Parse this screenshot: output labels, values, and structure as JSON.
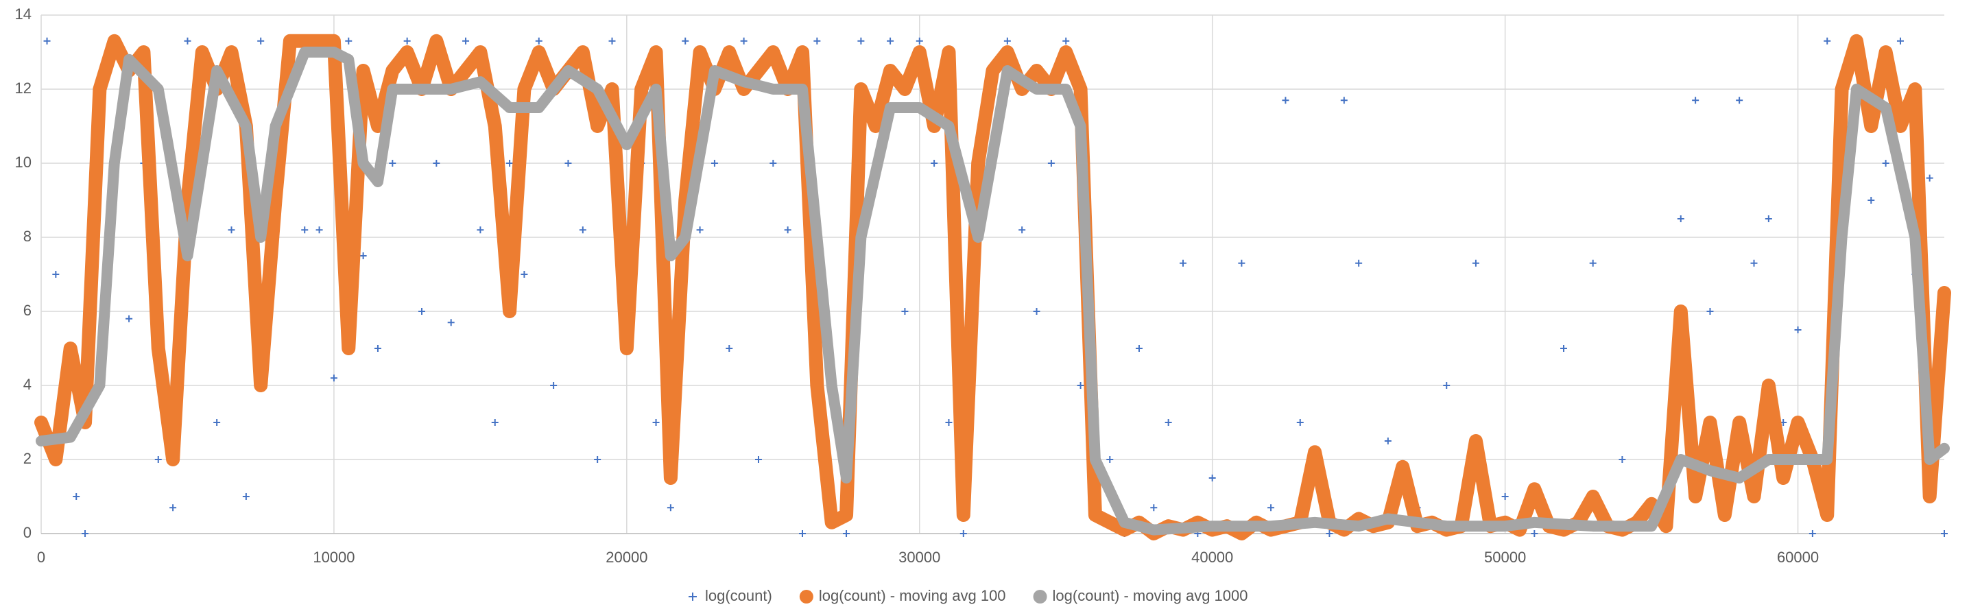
{
  "chart_data": {
    "type": "scatter",
    "xlim": [
      0,
      65000
    ],
    "ylim": [
      0,
      14
    ],
    "xticks": [
      0,
      10000,
      20000,
      30000,
      40000,
      50000,
      60000
    ],
    "yticks": [
      0,
      2,
      4,
      6,
      8,
      10,
      12,
      14
    ],
    "grid": true,
    "legend": "bottom",
    "series": [
      {
        "name": "log(count)",
        "type": "scatter",
        "color": "#4472c4",
        "x": [
          200,
          500,
          800,
          1200,
          1500,
          2000,
          2500,
          3000,
          3500,
          4000,
          4500,
          5000,
          5500,
          6000,
          6500,
          7000,
          7500,
          8000,
          8500,
          9000,
          9500,
          10000,
          10500,
          11000,
          11500,
          12000,
          12500,
          13000,
          13500,
          14000,
          14500,
          15000,
          15500,
          16000,
          16500,
          17000,
          17500,
          18000,
          18500,
          19000,
          19500,
          20000,
          20500,
          21000,
          21500,
          22000,
          22500,
          23000,
          23500,
          24000,
          24500,
          25000,
          25500,
          26000,
          26500,
          27000,
          27500,
          28000,
          28500,
          29000,
          29500,
          30000,
          30500,
          31000,
          31500,
          32000,
          32500,
          33000,
          33500,
          34000,
          34500,
          35000,
          35500,
          36000,
          36500,
          37000,
          37500,
          38000,
          38500,
          39000,
          39500,
          40000,
          41000,
          42000,
          42500,
          43000,
          44000,
          44500,
          45000,
          46000,
          47000,
          48000,
          49000,
          50000,
          51000,
          52000,
          53000,
          54000,
          55000,
          56000,
          56500,
          57000,
          57500,
          58000,
          58500,
          59000,
          59500,
          60000,
          60500,
          61000,
          61500,
          62000,
          62500,
          63000,
          63500,
          64000,
          64500,
          65000
        ],
        "values": [
          13.3,
          7,
          4,
          1,
          0,
          10,
          13.3,
          5.8,
          10,
          2,
          0.7,
          13.3,
          10,
          3,
          8.2,
          1,
          13.3,
          8.2,
          13.3,
          8.2,
          8.2,
          4.2,
          13.3,
          7.5,
          5,
          10,
          13.3,
          6,
          10,
          5.7,
          13.3,
          8.2,
          3,
          10,
          7,
          13.3,
          4,
          10,
          8.2,
          2,
          13.3,
          6,
          10,
          3,
          0.7,
          13.3,
          8.2,
          10,
          5,
          13.3,
          2,
          10,
          8.2,
          0,
          13.3,
          4,
          0,
          13.3,
          10,
          13.3,
          6,
          13.3,
          10,
          3,
          0,
          8,
          10,
          13.3,
          8.2,
          6,
          10,
          13.3,
          4,
          0.7,
          2,
          0,
          5,
          0.7,
          3,
          7.3,
          0,
          1.5,
          7.3,
          0.7,
          11.7,
          3,
          0,
          11.7,
          7.3,
          2.5,
          0.7,
          4,
          7.3,
          1,
          0,
          5,
          7.3,
          2,
          0.7,
          8.5,
          11.7,
          6,
          1,
          11.7,
          7.3,
          8.5,
          3,
          5.5,
          0,
          13.3,
          8,
          13.3,
          9,
          10,
          13.3,
          7,
          9.6,
          0
        ]
      },
      {
        "name": "log(count) - moving avg 100",
        "type": "line",
        "color": "#ed7d31",
        "x": [
          0,
          500,
          1000,
          1500,
          2000,
          2500,
          3000,
          3500,
          4000,
          4500,
          5000,
          5500,
          6000,
          6500,
          7000,
          7500,
          8000,
          8500,
          9000,
          9500,
          10000,
          10500,
          11000,
          11500,
          12000,
          12500,
          13000,
          13500,
          14000,
          14500,
          15000,
          15500,
          16000,
          16500,
          17000,
          17500,
          18000,
          18500,
          19000,
          19500,
          20000,
          20500,
          21000,
          21500,
          22000,
          22500,
          23000,
          23500,
          24000,
          24500,
          25000,
          25500,
          26000,
          26500,
          27000,
          27500,
          28000,
          28500,
          29000,
          29500,
          30000,
          30500,
          31000,
          31500,
          32000,
          32500,
          33000,
          33500,
          34000,
          34500,
          35000,
          35500,
          36000,
          36500,
          37000,
          37500,
          38000,
          38500,
          39000,
          39500,
          40000,
          40500,
          41000,
          41500,
          42000,
          42500,
          43000,
          43500,
          44000,
          44500,
          45000,
          45500,
          46000,
          46500,
          47000,
          47500,
          48000,
          48500,
          49000,
          49500,
          50000,
          50500,
          51000,
          51500,
          52000,
          52500,
          53000,
          53500,
          54000,
          54500,
          55000,
          55500,
          56000,
          56500,
          57000,
          57500,
          58000,
          58500,
          59000,
          59500,
          60000,
          60500,
          61000,
          61500,
          62000,
          62500,
          63000,
          63500,
          64000,
          64500,
          65000
        ],
        "values": [
          3,
          2,
          5,
          3,
          12,
          13.3,
          12.5,
          13,
          5,
          2,
          9,
          13,
          12,
          13,
          11,
          4,
          9,
          13.3,
          13.3,
          13.3,
          13.3,
          5,
          12.5,
          11,
          12.5,
          13,
          12,
          13.3,
          12,
          12.5,
          13,
          11,
          6,
          12,
          13,
          12,
          12.5,
          13,
          11,
          12,
          5,
          12,
          13,
          1.5,
          9,
          13,
          12,
          13,
          12,
          12.5,
          13,
          12,
          13,
          4,
          0.3,
          0.5,
          12,
          11,
          12.5,
          12,
          13,
          11,
          13,
          0.5,
          10,
          12.5,
          13,
          12,
          12.5,
          12,
          13,
          12,
          0.5,
          0.3,
          0.1,
          0.3,
          0,
          0.2,
          0.1,
          0.3,
          0.1,
          0.2,
          0,
          0.3,
          0.1,
          0.2,
          0.3,
          2.2,
          0.3,
          0.1,
          0.4,
          0.2,
          0.3,
          1.8,
          0.2,
          0.3,
          0.1,
          0.2,
          2.5,
          0.2,
          0.3,
          0.1,
          1.2,
          0.2,
          0.1,
          0.3,
          1,
          0.2,
          0.1,
          0.3,
          0.8,
          0.2,
          6,
          1,
          3,
          0.5,
          3,
          1,
          4,
          1.5,
          3,
          2,
          0.5,
          12,
          13.3,
          11,
          13,
          11,
          12,
          1,
          6.5
        ]
      },
      {
        "name": "log(count) - moving avg 1000",
        "type": "line",
        "color": "#a5a5a5",
        "x": [
          0,
          1000,
          2000,
          2500,
          3000,
          4000,
          5000,
          6000,
          7000,
          7500,
          8000,
          9000,
          10000,
          10500,
          11000,
          11500,
          12000,
          13000,
          14000,
          15000,
          16000,
          17000,
          18000,
          19000,
          20000,
          21000,
          21500,
          22000,
          23000,
          24000,
          25000,
          26000,
          27000,
          27500,
          28000,
          29000,
          30000,
          31000,
          32000,
          33000,
          34000,
          35000,
          35500,
          36000,
          37000,
          38000,
          40000,
          42000,
          43500,
          45000,
          46000,
          48000,
          50000,
          51000,
          53000,
          55000,
          56000,
          57000,
          58000,
          59000,
          60000,
          61000,
          61500,
          62000,
          63000,
          64000,
          64500,
          65000
        ],
        "values": [
          2.5,
          2.6,
          4,
          10,
          12.8,
          12,
          7.5,
          12.5,
          11,
          8,
          11,
          13,
          13,
          12.8,
          10,
          9.5,
          12,
          12,
          12,
          12.2,
          11.5,
          11.5,
          12.5,
          12,
          10.5,
          12,
          7.5,
          8,
          12.5,
          12.2,
          12,
          12,
          4,
          1.5,
          8,
          11.5,
          11.5,
          11,
          8,
          12.5,
          12,
          12,
          11,
          2,
          0.3,
          0.1,
          0.2,
          0.2,
          0.3,
          0.2,
          0.4,
          0.2,
          0.2,
          0.3,
          0.2,
          0.2,
          2,
          1.7,
          1.5,
          2,
          2,
          2,
          8,
          12,
          11.5,
          8,
          2,
          2.3
        ]
      }
    ]
  }
}
